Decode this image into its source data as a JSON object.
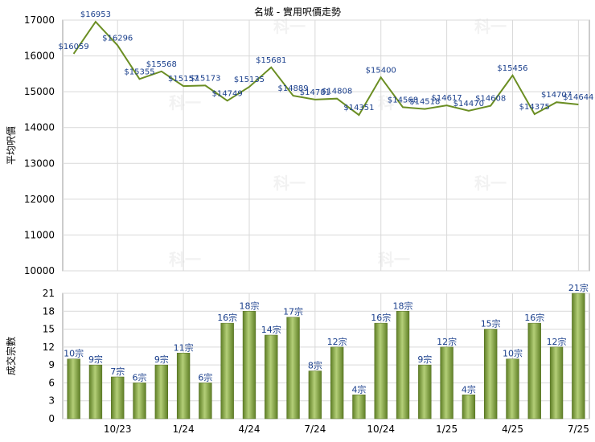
{
  "chart_data": [
    {
      "type": "line",
      "title": "名城 - 實用呎價走勢",
      "ylabel": "平均呎價",
      "ylim": [
        10000,
        17000
      ],
      "yticks": [
        10000,
        11000,
        12000,
        13000,
        14000,
        15000,
        16000,
        17000
      ],
      "grid": true,
      "color": "#6b8e23",
      "values": [
        16059,
        16953,
        16296,
        15355,
        15568,
        15157,
        15173,
        14749,
        15135,
        15681,
        14889,
        14781,
        14808,
        14351,
        15400,
        14568,
        14518,
        14617,
        14470,
        14608,
        15456,
        14375,
        14707,
        14644
      ],
      "labels": [
        "$16059",
        "$16953",
        "$16296",
        "$15355",
        "$15568",
        "$15157",
        "$15173",
        "$14749",
        "$15135",
        "$15681",
        "$14889",
        "$14781",
        "$14808",
        "$14351",
        "$15400",
        "$14568",
        "$14518",
        "$14617",
        "$14470",
        "$14608",
        "$15456",
        "$14375",
        "$14707",
        "$14644"
      ]
    },
    {
      "type": "bar",
      "ylabel": "成交宗數",
      "ylim": [
        0,
        21
      ],
      "yticks": [
        0,
        3,
        6,
        9,
        12,
        15,
        18,
        21
      ],
      "grid": true,
      "color": "#7a9a3a",
      "values": [
        10,
        9,
        7,
        6,
        9,
        11,
        6,
        16,
        18,
        14,
        17,
        8,
        12,
        4,
        16,
        18,
        9,
        12,
        4,
        15,
        10,
        16,
        12,
        21
      ],
      "labels": [
        "10宗",
        "9宗",
        "7宗",
        "6宗",
        "9宗",
        "11宗",
        "6宗",
        "16宗",
        "18宗",
        "14宗",
        "17宗",
        "8宗",
        "12宗",
        "4宗",
        "16宗",
        "18宗",
        "9宗",
        "12宗",
        "4宗",
        "15宗",
        "10宗",
        "16宗",
        "12宗",
        "21宗"
      ],
      "xticks": [
        "10/23",
        "1/24",
        "4/24",
        "7/24",
        "10/24",
        "1/25",
        "4/25",
        "7/25"
      ],
      "xtick_index": [
        2,
        5,
        8,
        11,
        14,
        17,
        20,
        23
      ]
    }
  ],
  "watermark": "科一"
}
